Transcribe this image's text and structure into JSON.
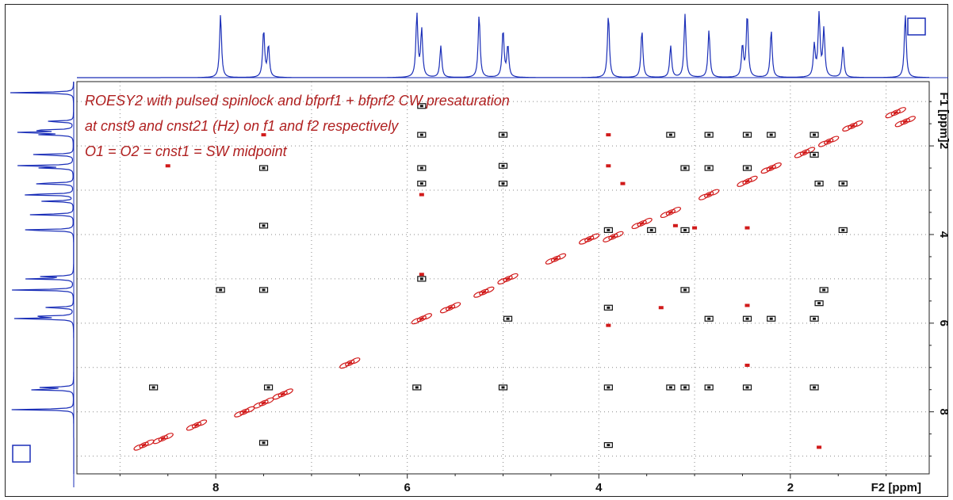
{
  "chart_data": {
    "type": "scatter",
    "subtype": "2D NMR contour plot",
    "annotation_lines": [
      "ROESY2 with  pulsed spinlock and bfprf1 +  bfprf2 CW presaturation",
      "at cnst9 and cnst21 (Hz) on f1 and f2 respectively",
      "O1 = O2 = cnst1 = SW midpoint"
    ],
    "xlabel": "F2 [ppm]",
    "ylabel": "F1 [ppm]",
    "x_ticks": [
      "8",
      "6",
      "4",
      "2"
    ],
    "y_ticks": [
      "2",
      "4",
      "6",
      "8"
    ],
    "xlim": [
      9.45,
      0.55
    ],
    "ylim": [
      0.55,
      9.4
    ],
    "x_axis_reversed": true,
    "y_axis_reversed": true,
    "grid": true,
    "colors": {
      "spectrum": "#1b2fb8",
      "positive_contour": "#d11a1a",
      "negative_contour": "#111111",
      "annotation": "#b02020",
      "grid": "#8a8a8a"
    },
    "projection_peaks_ppm": [
      7.95,
      7.5,
      7.45,
      5.9,
      5.85,
      5.65,
      5.25,
      5.0,
      4.95,
      3.9,
      3.55,
      3.25,
      3.1,
      2.85,
      2.5,
      2.45,
      2.2,
      1.75,
      1.7,
      1.65,
      1.45,
      0.8,
      0.2
    ],
    "diagonal_peaks": [
      {
        "x": 8.75,
        "y": 8.75
      },
      {
        "x": 8.55,
        "y": 8.6
      },
      {
        "x": 8.2,
        "y": 8.3
      },
      {
        "x": 7.7,
        "y": 8.0
      },
      {
        "x": 7.5,
        "y": 7.8
      },
      {
        "x": 7.3,
        "y": 7.6
      },
      {
        "x": 6.6,
        "y": 6.9
      },
      {
        "x": 5.85,
        "y": 5.9
      },
      {
        "x": 5.55,
        "y": 5.65
      },
      {
        "x": 5.2,
        "y": 5.3
      },
      {
        "x": 4.95,
        "y": 5.0
      },
      {
        "x": 4.45,
        "y": 4.55
      },
      {
        "x": 4.1,
        "y": 4.1
      },
      {
        "x": 3.85,
        "y": 4.05
      },
      {
        "x": 3.55,
        "y": 3.75
      },
      {
        "x": 3.25,
        "y": 3.5
      },
      {
        "x": 2.85,
        "y": 3.1
      },
      {
        "x": 2.45,
        "y": 2.8
      },
      {
        "x": 2.2,
        "y": 2.5
      },
      {
        "x": 1.85,
        "y": 2.15
      },
      {
        "x": 1.6,
        "y": 1.9
      },
      {
        "x": 1.35,
        "y": 1.55
      },
      {
        "x": 0.9,
        "y": 1.25
      },
      {
        "x": 0.8,
        "y": 1.45
      },
      {
        "x": 0.15,
        "y": 0.75
      }
    ],
    "negative_crosspeaks": [
      {
        "x": 5.85,
        "y": 1.75
      },
      {
        "x": 5.85,
        "y": 2.5
      },
      {
        "x": 5.85,
        "y": 2.85
      },
      {
        "x": 5.0,
        "y": 1.75
      },
      {
        "x": 5.0,
        "y": 2.45
      },
      {
        "x": 5.0,
        "y": 2.85
      },
      {
        "x": 4.95,
        "y": 5.9
      },
      {
        "x": 5.85,
        "y": 5.0
      },
      {
        "x": 3.9,
        "y": 3.9
      },
      {
        "x": 3.45,
        "y": 3.9
      },
      {
        "x": 3.1,
        "y": 3.9
      },
      {
        "x": 1.45,
        "y": 3.9
      },
      {
        "x": 3.25,
        "y": 1.75
      },
      {
        "x": 3.1,
        "y": 2.5
      },
      {
        "x": 2.85,
        "y": 1.75
      },
      {
        "x": 2.85,
        "y": 2.5
      },
      {
        "x": 2.45,
        "y": 1.75
      },
      {
        "x": 2.45,
        "y": 2.5
      },
      {
        "x": 1.75,
        "y": 2.2
      },
      {
        "x": 1.7,
        "y": 2.85
      },
      {
        "x": 1.45,
        "y": 2.85
      },
      {
        "x": 2.2,
        "y": 1.75
      },
      {
        "x": 1.75,
        "y": 1.75
      },
      {
        "x": 3.9,
        "y": 5.65
      },
      {
        "x": 2.45,
        "y": 5.9
      },
      {
        "x": 1.75,
        "y": 5.9
      },
      {
        "x": 1.65,
        "y": 5.25
      },
      {
        "x": 3.1,
        "y": 5.25
      },
      {
        "x": 2.85,
        "y": 5.9
      },
      {
        "x": 2.2,
        "y": 5.9
      },
      {
        "x": 1.7,
        "y": 5.55
      },
      {
        "x": 7.5,
        "y": 2.5
      },
      {
        "x": 7.5,
        "y": 3.8
      },
      {
        "x": 7.5,
        "y": 5.25
      },
      {
        "x": 7.95,
        "y": 5.25
      },
      {
        "x": 8.65,
        "y": 7.45
      },
      {
        "x": 7.45,
        "y": 7.45
      },
      {
        "x": 5.0,
        "y": 7.45
      },
      {
        "x": 5.9,
        "y": 7.45
      },
      {
        "x": 3.9,
        "y": 7.45
      },
      {
        "x": 3.25,
        "y": 7.45
      },
      {
        "x": 3.1,
        "y": 7.45
      },
      {
        "x": 2.85,
        "y": 7.45
      },
      {
        "x": 2.45,
        "y": 7.45
      },
      {
        "x": 1.75,
        "y": 7.45
      },
      {
        "x": 5.85,
        "y": 1.1
      },
      {
        "x": 3.9,
        "y": 8.75
      },
      {
        "x": 7.5,
        "y": 8.7
      }
    ],
    "positive_crosspeaks": [
      {
        "x": 7.5,
        "y": 1.75
      },
      {
        "x": 8.5,
        "y": 2.45
      },
      {
        "x": 3.9,
        "y": 2.45
      },
      {
        "x": 5.85,
        "y": 3.1
      },
      {
        "x": 3.75,
        "y": 2.85
      },
      {
        "x": 3.2,
        "y": 3.8
      },
      {
        "x": 3.0,
        "y": 3.85
      },
      {
        "x": 2.45,
        "y": 3.85
      },
      {
        "x": 3.35,
        "y": 5.65
      },
      {
        "x": 3.9,
        "y": 6.05
      },
      {
        "x": 2.45,
        "y": 6.95
      },
      {
        "x": 1.7,
        "y": 8.8
      },
      {
        "x": 3.9,
        "y": 1.75
      },
      {
        "x": 2.45,
        "y": 5.6
      },
      {
        "x": 5.85,
        "y": 4.9
      }
    ]
  }
}
